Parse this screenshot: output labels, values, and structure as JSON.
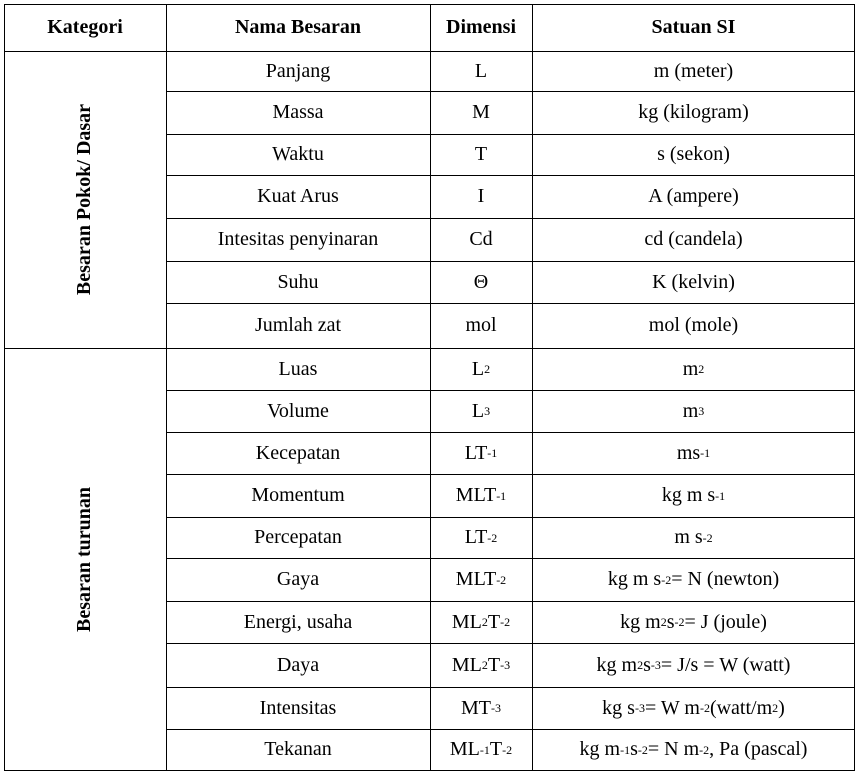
{
  "headers": {
    "kategori": "Kategori",
    "nama": "Nama Besaran",
    "dimensi": "Dimensi",
    "satuan": "Satuan SI"
  },
  "categories": {
    "pokok": "Besaran Pokok/ Dasar",
    "turunan": "Besaran turunan"
  },
  "pokok_rows": [
    {
      "nama": "Panjang",
      "dimensi": "L",
      "satuan": "m (meter)"
    },
    {
      "nama": "Massa",
      "dimensi": "M",
      "satuan": "kg (kilogram)"
    },
    {
      "nama": "Waktu",
      "dimensi": "T",
      "satuan": "s (sekon)"
    },
    {
      "nama": "Kuat Arus",
      "dimensi": "I",
      "satuan": "A (ampere)"
    },
    {
      "nama": "Intesitas penyinaran",
      "dimensi": "Cd",
      "satuan": "cd (candela)"
    },
    {
      "nama": "Suhu",
      "dimensi": "Θ",
      "satuan": "K (kelvin)"
    },
    {
      "nama": "Jumlah zat",
      "dimensi": "mol",
      "satuan": "mol (mole)"
    }
  ],
  "turunan_rows": [
    {
      "nama": "Luas",
      "dimensi": [
        [
          "L",
          ""
        ],
        [
          "",
          "2"
        ]
      ],
      "satuan": [
        [
          "m",
          ""
        ],
        [
          "",
          "2"
        ]
      ]
    },
    {
      "nama": "Volume",
      "dimensi": [
        [
          "L",
          ""
        ],
        [
          "",
          "3"
        ]
      ],
      "satuan": [
        [
          "m",
          ""
        ],
        [
          "",
          "3"
        ]
      ]
    },
    {
      "nama": "Kecepatan",
      "dimensi": [
        [
          "LT",
          ""
        ],
        [
          "",
          "-1"
        ]
      ],
      "satuan": [
        [
          "ms",
          ""
        ],
        [
          "",
          "-1"
        ]
      ]
    },
    {
      "nama": "Momentum",
      "dimensi": [
        [
          "MLT",
          ""
        ],
        [
          "",
          "-1"
        ]
      ],
      "satuan": [
        [
          "kg m s",
          ""
        ],
        [
          "",
          "-1"
        ]
      ]
    },
    {
      "nama": "Percepatan",
      "dimensi": [
        [
          "LT",
          ""
        ],
        [
          "",
          "-2"
        ]
      ],
      "satuan": [
        [
          "m s",
          ""
        ],
        [
          "",
          "-2"
        ]
      ]
    },
    {
      "nama": "Gaya",
      "dimensi": [
        [
          "MLT",
          ""
        ],
        [
          "",
          "-2"
        ]
      ],
      "satuan": [
        [
          "kg m s",
          ""
        ],
        [
          "",
          "-2"
        ],
        [
          " = N (newton)",
          ""
        ]
      ]
    },
    {
      "nama": "Energi, usaha",
      "dimensi": [
        [
          "ML",
          ""
        ],
        [
          "",
          "2"
        ],
        [
          "T",
          ""
        ],
        [
          "",
          "-2"
        ]
      ],
      "satuan": [
        [
          "kg m",
          ""
        ],
        [
          "",
          "2"
        ],
        [
          " s",
          ""
        ],
        [
          "",
          "-2"
        ],
        [
          " = J (joule)",
          ""
        ]
      ]
    },
    {
      "nama": "Daya",
      "dimensi": [
        [
          "ML",
          ""
        ],
        [
          "",
          "2"
        ],
        [
          "T",
          ""
        ],
        [
          "",
          "-3"
        ]
      ],
      "satuan": [
        [
          "kg m",
          ""
        ],
        [
          "",
          "2"
        ],
        [
          " s",
          ""
        ],
        [
          "",
          "-3"
        ],
        [
          " = J/s = W (watt)",
          ""
        ]
      ]
    },
    {
      "nama": "Intensitas",
      "dimensi": [
        [
          "MT",
          ""
        ],
        [
          "",
          "-3"
        ]
      ],
      "satuan": [
        [
          "kg  s",
          ""
        ],
        [
          "",
          "-3"
        ],
        [
          "  = W m",
          ""
        ],
        [
          "",
          "-2"
        ],
        [
          " (watt/m",
          ""
        ],
        [
          "",
          "2"
        ],
        [
          ")",
          ""
        ]
      ]
    },
    {
      "nama": "Tekanan",
      "dimensi": [
        [
          "ML",
          ""
        ],
        [
          "",
          "-1"
        ],
        [
          "T",
          ""
        ],
        [
          "",
          "-2"
        ]
      ],
      "satuan": [
        [
          "kg m",
          ""
        ],
        [
          "",
          "-1"
        ],
        [
          " s",
          ""
        ],
        [
          "",
          "-2"
        ],
        [
          " = N m",
          ""
        ],
        [
          "",
          "-2"
        ],
        [
          ", Pa (pascal)",
          ""
        ]
      ]
    }
  ]
}
